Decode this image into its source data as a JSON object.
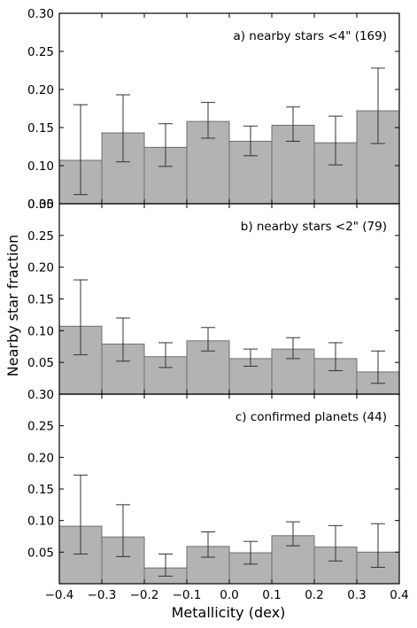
{
  "chart_data": {
    "type": "bar",
    "xlabel": "Metallicity (dex)",
    "ylabel": "Nearby star fraction",
    "x_ticks": [
      "−0.4",
      "−0.3",
      "−0.2",
      "−0.1",
      "0.0",
      "0.1",
      "0.2",
      "0.3",
      "0.4"
    ],
    "bin_edges": [
      -0.4,
      -0.3,
      -0.2,
      -0.1,
      0.0,
      0.1,
      0.2,
      0.3,
      0.4
    ],
    "colors": {
      "bar_fill": "#b3b3b3",
      "bar_edge": "#6e6e6e",
      "error_bar": "#333333",
      "axes": "#000000"
    },
    "grid": false,
    "panels": [
      {
        "label": "a) nearby stars <4\" (169)",
        "ylim": [
          0.05,
          0.3
        ],
        "y_ticks": [
          "0.05",
          "0.10",
          "0.15",
          "0.20",
          "0.25",
          "0.30"
        ],
        "values": [
          0.107,
          0.143,
          0.124,
          0.158,
          0.132,
          0.153,
          0.13,
          0.172
        ],
        "err_low": [
          0.062,
          0.105,
          0.099,
          0.136,
          0.113,
          0.132,
          0.101,
          0.129
        ],
        "err_high": [
          0.18,
          0.193,
          0.155,
          0.183,
          0.152,
          0.177,
          0.165,
          0.228
        ]
      },
      {
        "label": "b) nearby stars <2\" (79)",
        "ylim": [
          0.0,
          0.3
        ],
        "y_ticks": [
          "0.05",
          "0.10",
          "0.15",
          "0.20",
          "0.25",
          "0.30"
        ],
        "values": [
          0.107,
          0.079,
          0.059,
          0.084,
          0.056,
          0.071,
          0.056,
          0.035
        ],
        "err_low": [
          0.062,
          0.052,
          0.042,
          0.068,
          0.044,
          0.056,
          0.037,
          0.017
        ],
        "err_high": [
          0.18,
          0.12,
          0.081,
          0.105,
          0.071,
          0.089,
          0.081,
          0.068
        ]
      },
      {
        "label": "c) confirmed planets (44)",
        "ylim": [
          0.0,
          0.3
        ],
        "y_ticks": [
          "0.05",
          "0.10",
          "0.15",
          "0.20",
          "0.25",
          "0.30"
        ],
        "values": [
          0.091,
          0.074,
          0.025,
          0.059,
          0.049,
          0.076,
          0.058,
          0.05
        ],
        "err_low": [
          0.047,
          0.043,
          0.012,
          0.042,
          0.031,
          0.06,
          0.036,
          0.026
        ],
        "err_high": [
          0.172,
          0.125,
          0.047,
          0.082,
          0.067,
          0.098,
          0.092,
          0.095
        ]
      }
    ]
  }
}
